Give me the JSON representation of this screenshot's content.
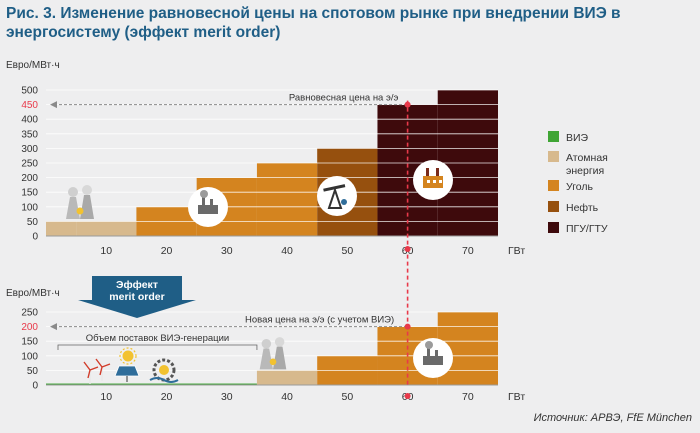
{
  "title": "Рис. 3. Изменение равновесной цены на спотовом рынке при внедрении ВИЭ в энергосистему (эффект merit order)",
  "source": "Источник: АРВЭ, FfE München",
  "chart_data": [
    {
      "type": "bar",
      "ylabel": "Евро/МВт·ч",
      "xlabel": "ГВт",
      "yticks": [
        0,
        50,
        100,
        150,
        200,
        250,
        300,
        350,
        400,
        450,
        500
      ],
      "highlight_tick": 450,
      "xticks": [
        10,
        20,
        30,
        40,
        50,
        60,
        70
      ],
      "xlim": [
        0,
        75
      ],
      "ylim": [
        0,
        520
      ],
      "steps": [
        {
          "x0": 0,
          "x1": 5,
          "value": 50,
          "source": "Атомная энергия"
        },
        {
          "x0": 5,
          "x1": 15,
          "value": 50,
          "source": "Атомная энергия"
        },
        {
          "x0": 15,
          "x1": 25,
          "value": 100,
          "source": "Уголь"
        },
        {
          "x0": 25,
          "x1": 35,
          "value": 200,
          "source": "Уголь"
        },
        {
          "x0": 35,
          "x1": 45,
          "value": 250,
          "source": "Уголь"
        },
        {
          "x0": 45,
          "x1": 55,
          "value": 300,
          "source": "Нефть"
        },
        {
          "x0": 55,
          "x1": 65,
          "value": 450,
          "source": "ПГУ/ГТУ"
        },
        {
          "x0": 65,
          "x1": 75,
          "value": 500,
          "source": "ПГУ/ГТУ"
        }
      ],
      "equilibrium": {
        "x": 60,
        "price": 450,
        "label": "Равновесная цена на э/э"
      }
    },
    {
      "type": "bar",
      "ylabel": "Евро/МВт·ч",
      "xlabel": "ГВт",
      "yticks": [
        0,
        50,
        100,
        150,
        200,
        250
      ],
      "highlight_tick": 200,
      "xticks": [
        10,
        20,
        30,
        40,
        50,
        60,
        70
      ],
      "xlim": [
        0,
        75
      ],
      "ylim": [
        0,
        270
      ],
      "steps": [
        {
          "x0": 0,
          "x1": 35,
          "value": 5,
          "source": "ВИЭ"
        },
        {
          "x0": 35,
          "x1": 45,
          "value": 50,
          "source": "Атомная энергия"
        },
        {
          "x0": 45,
          "x1": 55,
          "value": 100,
          "source": "Уголь"
        },
        {
          "x0": 55,
          "x1": 65,
          "value": 200,
          "source": "Уголь"
        },
        {
          "x0": 65,
          "x1": 75,
          "value": 250,
          "source": "Уголь"
        }
      ],
      "equilibrium": {
        "x": 60,
        "price": 200,
        "label": "Новая цена на э/э (с учетом ВИЭ)"
      },
      "span_label": "Объем поставок ВИЭ-генерации",
      "span": [
        0,
        35
      ]
    }
  ],
  "legend": [
    {
      "label": "ВИЭ",
      "color": "#3fa535"
    },
    {
      "label": "Атомная энергия",
      "color": "#d7b98d"
    },
    {
      "label": "Уголь",
      "color": "#d4841f"
    },
    {
      "label": "Нефть",
      "color": "#96500e"
    },
    {
      "label": "ПГУ/ГТУ",
      "color": "#3e0a0c"
    }
  ],
  "callout": {
    "line1": "Эффект",
    "line2": "merit order"
  },
  "colors": {
    "axis_text": "#333333",
    "highlight": "#e8394a",
    "grid": "#ffffff",
    "callout_bg": "#1f5e86",
    "title": "#1f5e86"
  },
  "icons": [
    "nuclear-plant-icon",
    "coal-plant-icon",
    "oil-pump-icon",
    "gas-plant-icon",
    "wind-turbine-icon",
    "solar-panel-icon",
    "sun-icon",
    "hydro-wheel-icon"
  ]
}
